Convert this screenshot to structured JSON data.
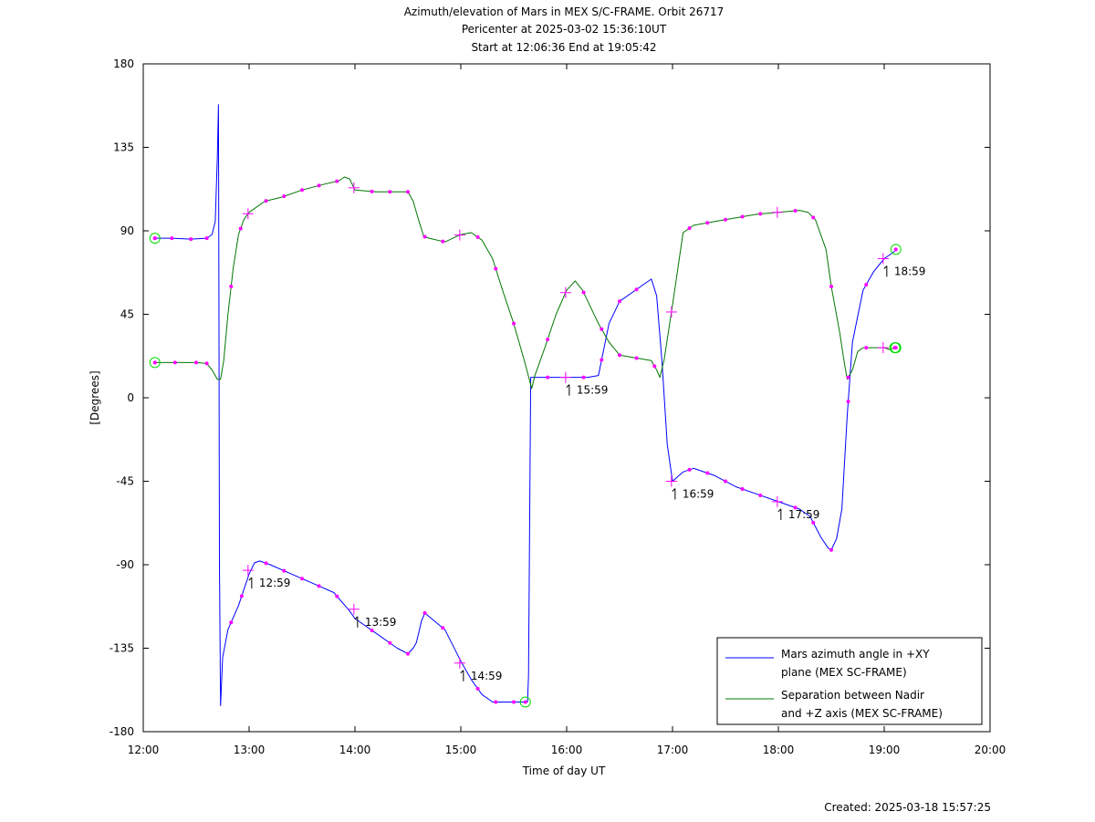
{
  "chart_data": {
    "type": "line",
    "title": "Azimuth/elevation of Mars in MEX S/C-FRAME.  Orbit 26717",
    "subtitle1": "Pericenter at 2025-03-02 15:36:10UT",
    "subtitle2": "Start at 12:06:36 End at 19:05:42",
    "xlabel": "Time of day UT",
    "ylabel": "[Degrees]",
    "xlim": [
      12.0,
      20.0
    ],
    "ylim": [
      -180,
      180
    ],
    "x_ticks": [
      12,
      13,
      14,
      15,
      16,
      17,
      18,
      19,
      20
    ],
    "x_tick_labels": [
      "12:00",
      "13:00",
      "14:00",
      "15:00",
      "16:00",
      "17:00",
      "18:00",
      "19:00",
      "20:00"
    ],
    "y_ticks": [
      180,
      135,
      90,
      45,
      0,
      -45,
      -90,
      -135,
      -180
    ],
    "y_tick_labels": [
      "180",
      "135",
      "90",
      "45",
      "0",
      "-45",
      "-90",
      "-135",
      "-180"
    ],
    "grid": false,
    "legend_position": "bottom-right",
    "series": [
      {
        "name": "Mars azimuth angle in +XY plane (MEX SC-FRAME)",
        "legend_lines": [
          "Mars azimuth angle in +XY",
          "plane (MEX SC-FRAME)"
        ],
        "color": "#0000ff",
        "x": [
          12.11,
          12.27,
          12.45,
          12.6,
          12.65,
          12.68,
          12.7,
          12.71,
          12.715,
          12.72,
          12.73,
          12.75,
          12.8,
          12.9,
          13.0,
          13.05,
          13.1,
          13.2,
          13.4,
          13.6,
          13.8,
          13.95,
          14.0,
          14.2,
          14.4,
          14.5,
          14.55,
          14.58,
          14.63,
          14.66,
          14.7,
          14.85,
          15.0,
          15.1,
          15.2,
          15.3,
          15.5,
          15.6,
          15.63,
          15.64,
          15.66,
          15.7,
          15.8,
          16.0,
          16.1,
          16.2,
          16.3,
          16.4,
          16.5,
          16.7,
          16.8,
          16.85,
          16.9,
          16.95,
          17.0,
          17.1,
          17.2,
          17.4,
          17.6,
          17.8,
          18.0,
          18.2,
          18.3,
          18.4,
          18.47,
          18.5,
          18.55,
          18.6,
          18.65,
          18.7,
          18.8,
          18.9,
          19.0,
          19.1
        ],
        "y": [
          86,
          86,
          85.5,
          86,
          88,
          95,
          130,
          158,
          60,
          -90,
          -166,
          -140,
          -125,
          -112,
          -95,
          -89,
          -88,
          -90,
          -95,
          -100,
          -105,
          -115,
          -119,
          -127,
          -135,
          -138,
          -135,
          -132,
          -120,
          -116,
          -118,
          -125,
          -142,
          -152,
          -160,
          -164,
          -164,
          -164,
          -164,
          -150,
          11,
          11,
          11,
          11,
          11,
          11,
          12,
          40,
          52,
          60,
          64,
          55,
          20,
          -25,
          -45,
          -40,
          -38,
          -42,
          -48,
          -52,
          -56,
          -60,
          -64,
          -75,
          -81,
          -82,
          -76,
          -60,
          -10,
          30,
          58,
          68,
          75,
          79
        ],
        "tick_marks": [
          {
            "x": 12.99,
            "y": -93,
            "label": "12:59"
          },
          {
            "x": 13.99,
            "y": -114,
            "label": "13:59"
          },
          {
            "x": 14.99,
            "y": -143,
            "label": "14:59"
          },
          {
            "x": 15.99,
            "y": 11,
            "label": "15:59"
          },
          {
            "x": 16.99,
            "y": -45,
            "label": "16:59"
          },
          {
            "x": 17.99,
            "y": -56,
            "label": "17:59"
          },
          {
            "x": 18.99,
            "y": 75,
            "label": "18:59"
          }
        ],
        "dots_x": [
          12.11,
          12.27,
          12.45,
          12.6,
          12.83,
          12.93,
          13.16,
          13.33,
          13.5,
          13.66,
          13.83,
          14.16,
          14.33,
          14.5,
          14.66,
          14.83,
          15.16,
          15.33,
          15.5,
          15.82,
          16.16,
          16.33,
          16.5,
          16.66,
          17.16,
          17.33,
          17.5,
          17.66,
          17.83,
          18.16,
          18.33,
          18.5,
          18.66,
          18.83
        ],
        "endpoint_circles_x": [
          15.61
        ]
      },
      {
        "name": "Separation between Nadir and +Z axis (MEX SC-FRAME)",
        "legend_lines": [
          "Separation between Nadir",
          "and +Z axis (MEX SC-FRAME)"
        ],
        "color": "#007700",
        "x": [
          12.11,
          12.3,
          12.5,
          12.6,
          12.65,
          12.7,
          12.73,
          12.76,
          12.8,
          12.85,
          12.9,
          12.95,
          13.0,
          13.15,
          13.3,
          13.5,
          13.7,
          13.85,
          13.9,
          13.95,
          14.0,
          14.2,
          14.4,
          14.5,
          14.55,
          14.6,
          14.65,
          14.7,
          14.85,
          15.0,
          15.1,
          15.2,
          15.3,
          15.4,
          15.5,
          15.6,
          15.67,
          15.7,
          15.8,
          15.9,
          16.0,
          16.08,
          16.15,
          16.2,
          16.3,
          16.4,
          16.5,
          16.7,
          16.8,
          16.85,
          16.88,
          16.92,
          17.0,
          17.1,
          17.2,
          17.4,
          17.6,
          17.8,
          18.0,
          18.2,
          18.28,
          18.35,
          18.45,
          18.5,
          18.58,
          18.62,
          18.65,
          18.7,
          18.75,
          18.8,
          18.9,
          19.0,
          19.05,
          19.1
        ],
        "y": [
          19,
          19,
          19,
          18.5,
          15,
          10,
          10,
          20,
          45,
          70,
          88,
          96,
          100,
          106,
          108,
          112,
          115,
          117,
          119,
          118,
          112,
          111,
          111,
          111,
          106,
          96,
          87,
          86,
          84,
          88,
          89,
          85,
          75,
          57,
          40,
          20,
          5,
          12,
          28,
          45,
          58,
          63,
          58,
          52,
          40,
          30,
          23,
          21,
          20,
          15,
          11,
          20,
          50,
          89,
          93,
          95,
          97,
          99,
          100,
          101,
          100,
          96,
          80,
          60,
          35,
          20,
          10,
          15,
          25,
          27,
          27,
          27,
          26,
          27
        ],
        "dots_x": [
          12.11,
          12.3,
          12.5,
          12.6,
          12.83,
          12.92,
          13.16,
          13.33,
          13.5,
          13.66,
          13.83,
          14.16,
          14.33,
          14.5,
          14.66,
          14.83,
          15.16,
          15.33,
          15.5,
          15.82,
          16.16,
          16.33,
          16.5,
          16.66,
          16.83,
          17.16,
          17.33,
          17.5,
          17.66,
          17.83,
          18.16,
          18.33,
          18.5,
          18.66,
          18.83
        ],
        "tick_marks_x": [
          12.99,
          13.99,
          14.99,
          15.99,
          16.99,
          17.99,
          18.99
        ],
        "endpoint_circles_x": [
          12.11,
          19.1
        ]
      }
    ],
    "extra_circles": [
      {
        "x": 12.11,
        "y": 86
      },
      {
        "x": 19.11,
        "y": 80
      },
      {
        "x": 19.11,
        "y": 27
      }
    ]
  },
  "footer": {
    "created": "Created: 2025-03-18 15:57:25"
  },
  "colors": {
    "marker": "#ff00ff",
    "circle": "#00dd00"
  }
}
